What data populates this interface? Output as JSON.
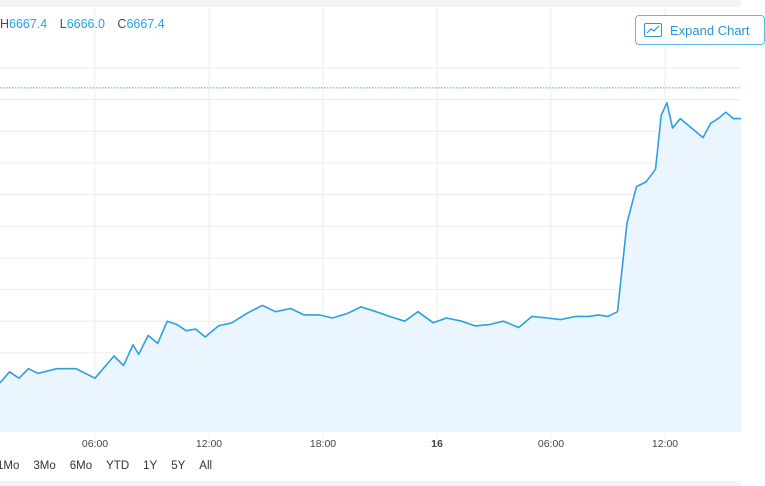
{
  "header": {
    "high_label": "H",
    "high_value": "6667.4",
    "low_label": "L",
    "low_value": "6666.0",
    "close_label": "C",
    "close_value": "6667.4",
    "expand_label": "Expand Chart"
  },
  "range_buttons": [
    "1Mo",
    "3Mo",
    "6Mo",
    "YTD",
    "1Y",
    "5Y",
    "All"
  ],
  "colors": {
    "line": "#2d9fe3",
    "fill": "#eaf5fd",
    "grid": "#ececec",
    "ref_line": "#46a7e6"
  },
  "chart_data": {
    "type": "area",
    "x_tick_labels": [
      "06:00",
      "12:00",
      "18:00",
      "16",
      "06:00",
      "12:00"
    ],
    "x_tick_hours": [
      6,
      12,
      18,
      24,
      30,
      36
    ],
    "xlim": [
      1,
      40
    ],
    "ylim": [
      6450,
      6685
    ],
    "y_grid_step": 20,
    "grid": true,
    "reference_line": 6667.4,
    "x": [
      1,
      1.5,
      2,
      2.5,
      3,
      4,
      5,
      6,
      7,
      7.5,
      8,
      8.3,
      8.8,
      9.3,
      9.8,
      10.3,
      10.8,
      11.3,
      11.8,
      12.5,
      13.2,
      14,
      14.8,
      15.5,
      16.3,
      17,
      17.8,
      18.5,
      19.3,
      20,
      20.8,
      21.5,
      22.3,
      23,
      23.8,
      24.5,
      25.3,
      26,
      26.8,
      27.5,
      28.3,
      29,
      29.8,
      30.5,
      31.3,
      32,
      32.5,
      33,
      33.5,
      34,
      34.5,
      35,
      35.5,
      35.8,
      36.1,
      36.4,
      36.8,
      37.2,
      37.6,
      38,
      38.4,
      38.8,
      39.2,
      39.6,
      40
    ],
    "y": [
      6481,
      6488,
      6484,
      6490,
      6487,
      6490,
      6490,
      6484,
      6498,
      6492,
      6505,
      6499,
      6511,
      6506,
      6520,
      6518,
      6514,
      6515,
      6510,
      6517,
      6519,
      6525,
      6530,
      6526,
      6528,
      6524,
      6524,
      6522,
      6525,
      6529,
      6526,
      6523,
      6520,
      6526,
      6519,
      6522,
      6520,
      6517,
      6518,
      6520,
      6516,
      6523,
      6522,
      6521,
      6523,
      6523,
      6524,
      6523,
      6526,
      6582,
      6605,
      6608,
      6616,
      6650,
      6658,
      6642,
      6648,
      6644,
      6640,
      6636,
      6645,
      6648,
      6652,
      6648,
      6648
    ]
  }
}
